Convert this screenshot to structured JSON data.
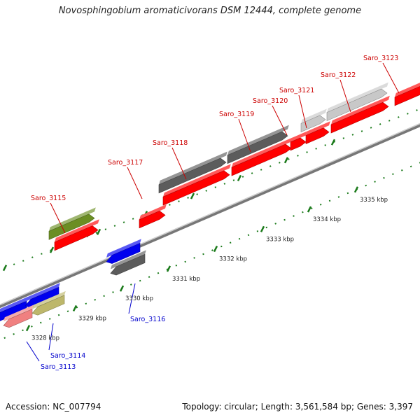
{
  "title": "Novosphingobium aromaticivorans DSM 12444, complete genome",
  "footer": {
    "accession": "Accession: NC_007794",
    "summary": "Topology: circular; Length: 3,561,584 bp; Genes: 3,397"
  },
  "axis": {
    "unit": "kbp",
    "ticks": [
      {
        "label": "3328 kbp",
        "kbp": 3328
      },
      {
        "label": "3329 kbp",
        "kbp": 3329
      },
      {
        "label": "3330 kbp",
        "kbp": 3330
      },
      {
        "label": "3331 kbp",
        "kbp": 3331
      },
      {
        "label": "3332 kbp",
        "kbp": 3332
      },
      {
        "label": "3333 kbp",
        "kbp": 3333
      },
      {
        "label": "3334 kbp",
        "kbp": 3334
      },
      {
        "label": "3335 kbp",
        "kbp": 3335
      }
    ]
  },
  "colors": {
    "red": "#ff0000",
    "dark_gray": "#5c5c5c",
    "light_gray": "#c8c8c8",
    "blue": "#0000ee",
    "olive": "#6b8e23",
    "khaki": "#bdb76b",
    "pink": "#f08080",
    "tick_green": "#1a7a1a",
    "label_red": "#cc0000",
    "label_blue": "#0000cc"
  },
  "genes": [
    {
      "name": "Saro_3113",
      "strand": "reverse",
      "color": "pink",
      "start": 3327.4,
      "end": 3328.0
    },
    {
      "name": "Saro_3114",
      "strand": "reverse",
      "color": "khaki",
      "start": 3328.0,
      "end": 3328.7
    },
    {
      "name": "Saro_3115",
      "strand": "forward",
      "color": "olive",
      "start": 3328.9,
      "end": 3329.8
    },
    {
      "name": "Saro_3116",
      "strand": "reverse",
      "color": "dark_gray",
      "start": 3330.3,
      "end": 3331.0
    },
    {
      "name": "Saro_3117",
      "strand": "forward",
      "color": "red",
      "start": 3331.0,
      "end": 3331.5
    },
    {
      "name": "Saro_3118",
      "strand": "forward",
      "color": "dark_gray",
      "start": 3331.5,
      "end": 3332.9
    },
    {
      "name": "Saro_3119",
      "strand": "forward",
      "color": "dark_gray",
      "start": 3332.9,
      "end": 3334.1
    },
    {
      "name": "Saro_3120",
      "strand": "forward",
      "color": "red",
      "start": 3334.0,
      "end": 3334.3
    },
    {
      "name": "Saro_3121",
      "strand": "forward",
      "color": "light_gray",
      "start": 3334.3,
      "end": 3334.8
    },
    {
      "name": "Saro_3122",
      "strand": "forward",
      "color": "light_gray",
      "start": 3334.8,
      "end": 3336.0
    },
    {
      "name": "Saro_3123",
      "strand": "forward",
      "color": "red",
      "start": 3336.2,
      "end": 3336.8
    }
  ]
}
